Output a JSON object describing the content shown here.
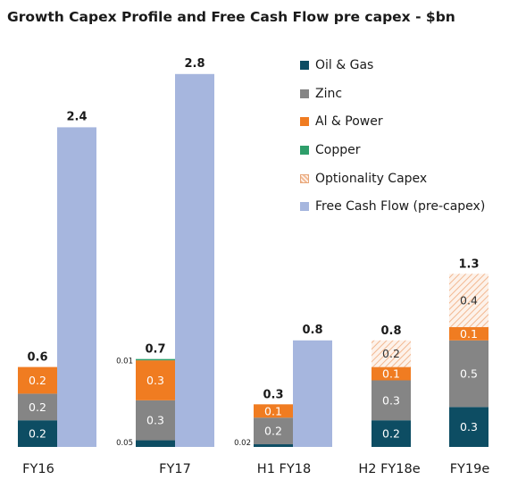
{
  "chart_data": {
    "type": "bar",
    "title": "Growth Capex Profile and Free Cash Flow pre capex - $bn",
    "categories": [
      "FY16",
      "FY17",
      "H1 FY18",
      "H2 FY18e",
      "FY19e"
    ],
    "stack_series": [
      {
        "key": "oil_gas",
        "name": "Oil & Gas",
        "color": "#0d4d63",
        "values": [
          0.2,
          0.05,
          0.02,
          0.2,
          0.3
        ],
        "labels": [
          "0.2",
          "0.05",
          "0.02",
          "0.2",
          "0.3"
        ]
      },
      {
        "key": "zinc",
        "name": "Zinc",
        "color": "#858585",
        "values": [
          0.2,
          0.3,
          0.2,
          0.3,
          0.5
        ],
        "labels": [
          "0.2",
          "0.3",
          "0.2",
          "0.3",
          "0.5"
        ]
      },
      {
        "key": "al_power",
        "name": "Al & Power",
        "color": "#f07c21",
        "values": [
          0.2,
          0.3,
          0.1,
          0.1,
          0.1
        ],
        "labels": [
          "0.2",
          "0.3",
          "0.1",
          "0.1",
          "0.1"
        ]
      },
      {
        "key": "copper",
        "name": "Copper",
        "color": "#2e9e6a",
        "values": [
          0,
          0.01,
          0,
          0,
          0
        ],
        "labels": [
          "",
          "0.01",
          "",
          "",
          ""
        ]
      },
      {
        "key": "optionality",
        "name": "Optionality Capex",
        "color": "#f5c9a9",
        "values": [
          0,
          0,
          0,
          0.2,
          0.4
        ],
        "labels": [
          "",
          "",
          "",
          "0.2",
          "0.4"
        ]
      }
    ],
    "stack_totals": [
      "0.6",
      "0.7",
      "0.3",
      "0.8",
      "1.3"
    ],
    "fcf_series": {
      "name": "Free Cash Flow (pre-capex)",
      "color": "#a6b6de",
      "values": [
        2.4,
        2.8,
        0.8,
        null,
        null
      ],
      "labels": [
        "2.4",
        "2.8",
        "0.8",
        "",
        ""
      ]
    },
    "legend_position": "top-right",
    "ylim": [
      0,
      3.0
    ],
    "grid": false
  }
}
